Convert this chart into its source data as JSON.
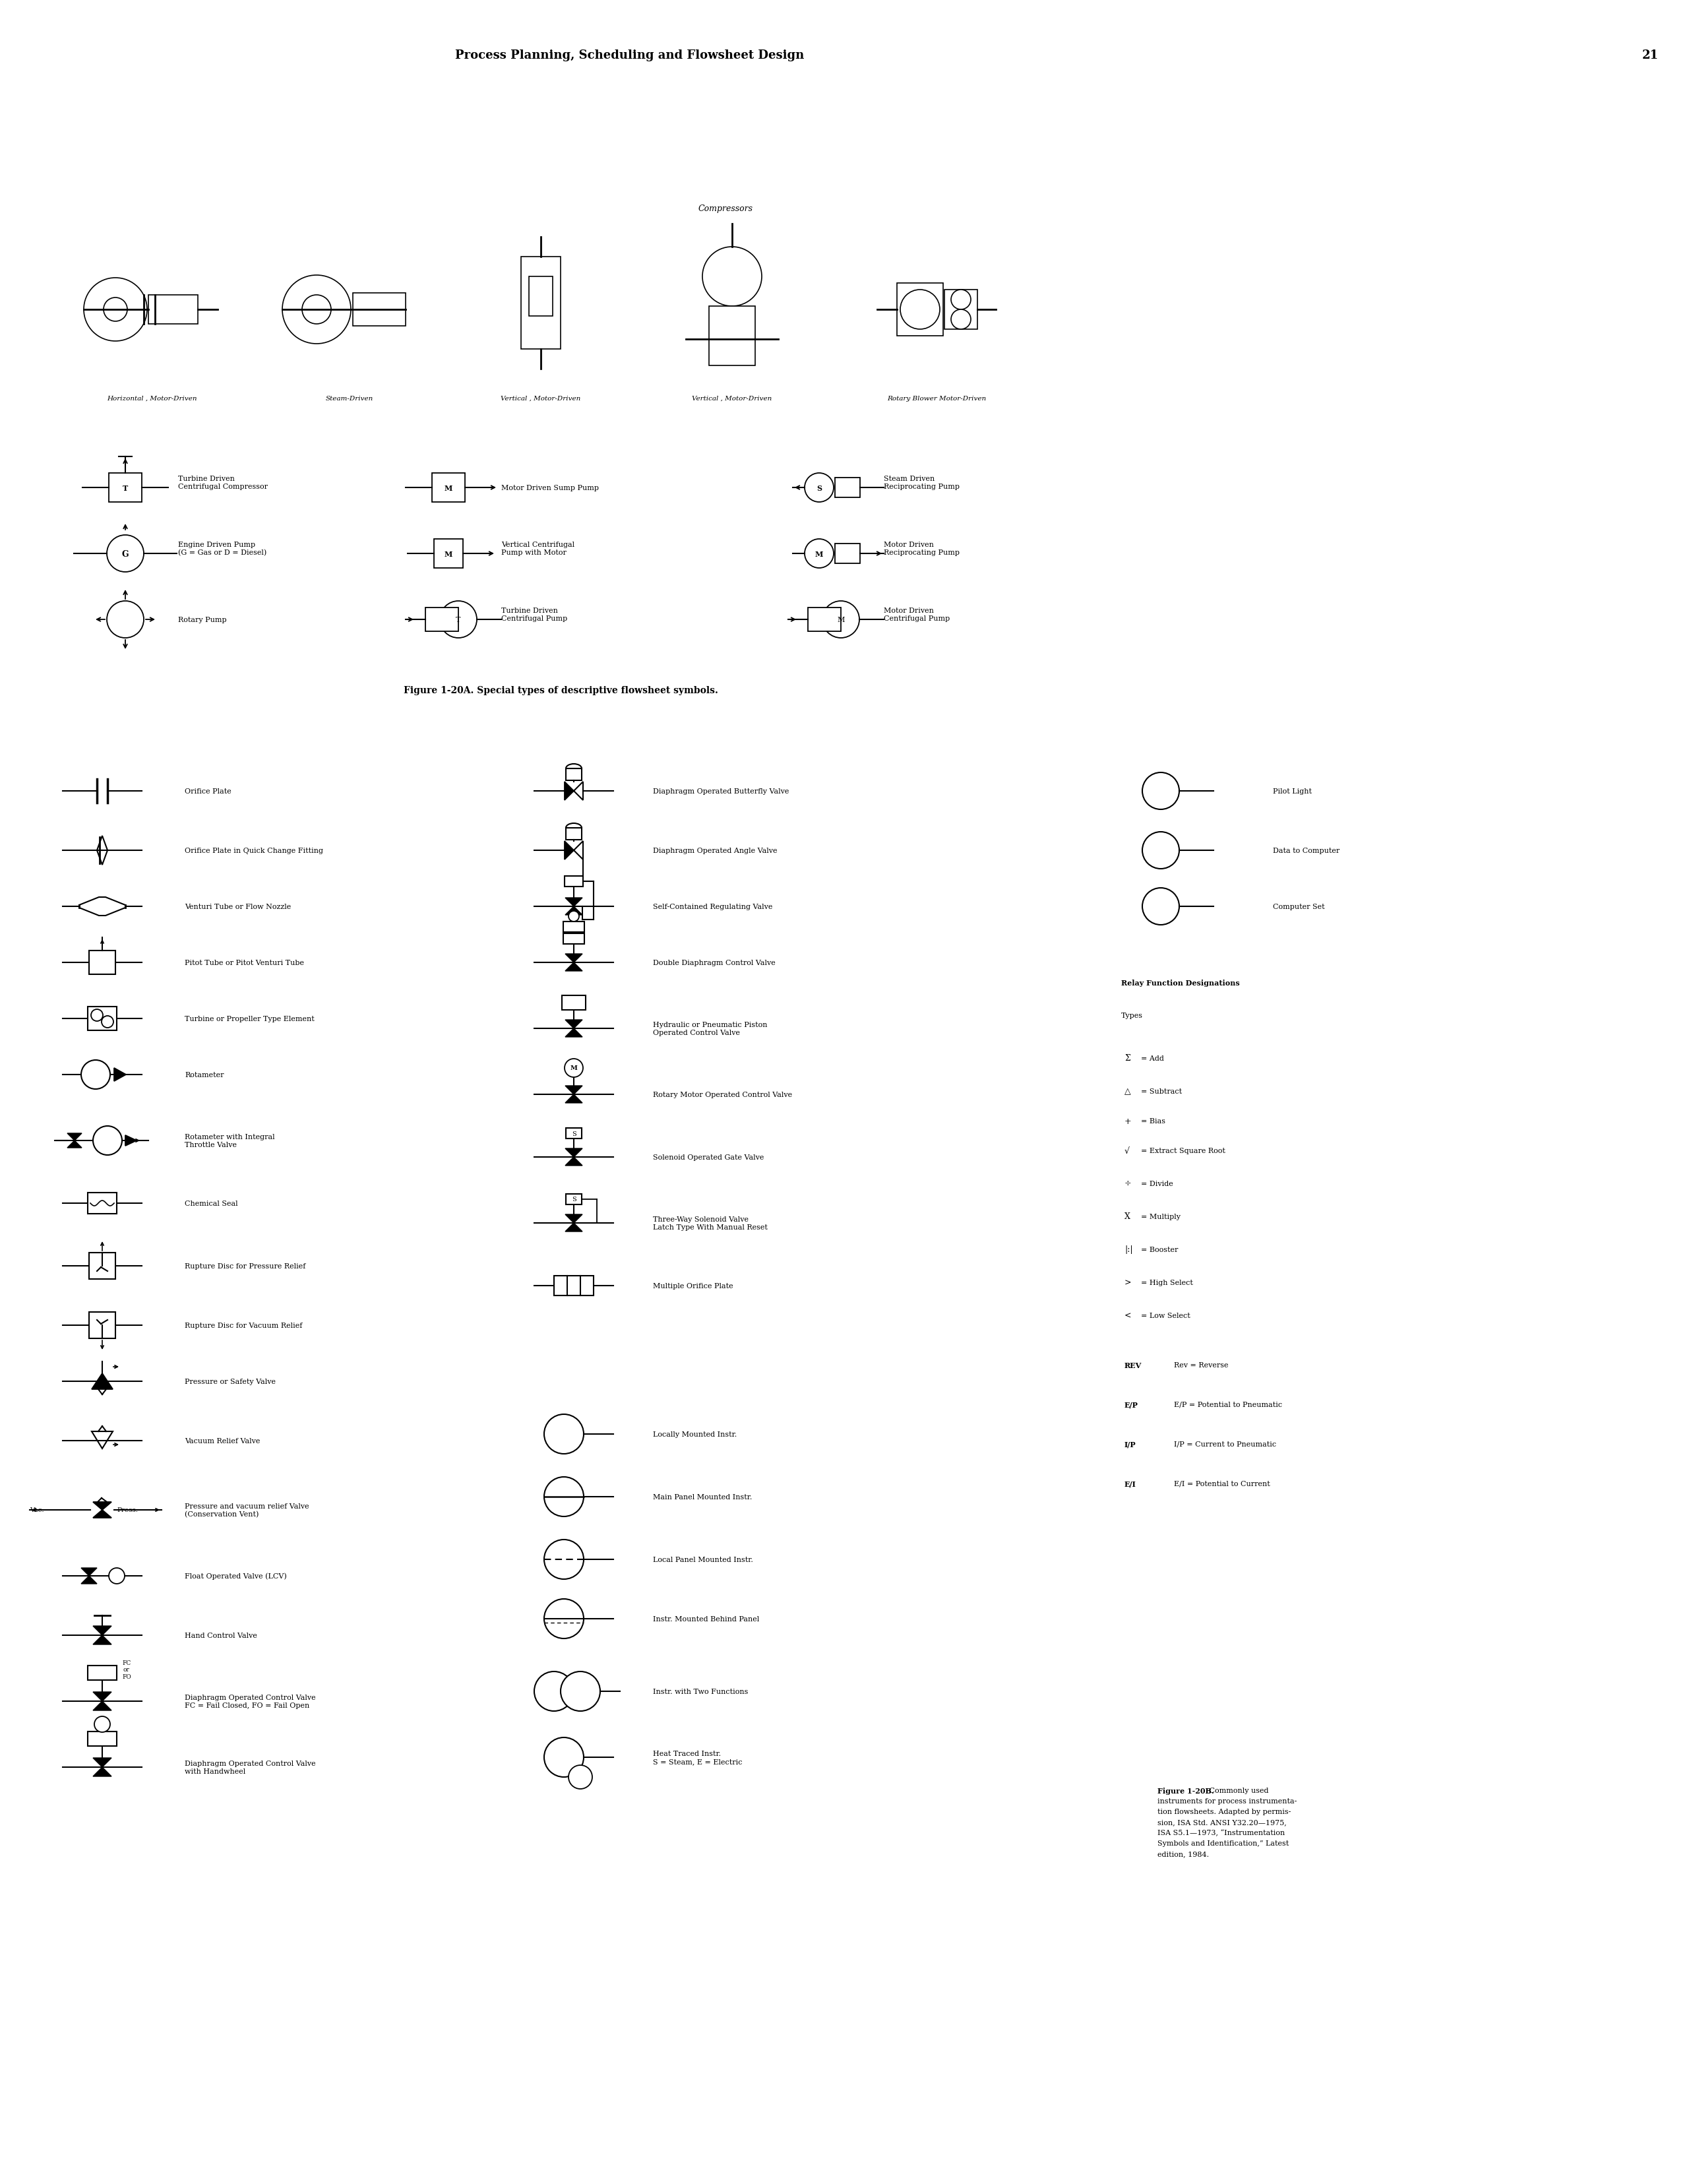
{
  "page_header": "Process Planning, Scheduling and Flowsheet Design",
  "page_number": "21",
  "section1_title": "Compressors",
  "compressor_labels": [
    "Horizontal , Motor-Driven",
    "Steam-Driven",
    "Vertical , Motor-Driven",
    "Vertical , Motor-Driven",
    "Rotary Blower Motor-Driven"
  ],
  "fig20a_title": "Figure 1-20A. Special types of descriptive flowsheet symbols.",
  "fig20b_caption_bold": "Figure 1-20B.",
  "fig20b_caption_rest": " Commonly used\ninstruments for process instrumenta-\ntion flowsheets. Adapted by permis-\nsion, ISA Std. ANSI Y32.20—1975,\nISA S5.1—1973, “Instrumentation\nSymbols and Identification,” Latest\nedition, 1984.",
  "col1_items": [
    "Orifice Plate",
    "Orifice Plate in Quick Change Fitting",
    "Venturi Tube or Flow Nozzle",
    "Pitot Tube or Pitot Venturi Tube",
    "Turbine or Propeller Type Element",
    "Rotameter",
    "Rotameter with Integral\nThrottle Valve",
    "Chemical Seal",
    "Rupture Disc for Pressure Relief",
    "Rupture Disc for Vacuum Relief",
    "Pressure or Safety Valve",
    "Vacuum Relief Valve",
    "Pressure and vacuum relief Valve\n(Conservation Vent)",
    "Float Operated Valve (LCV)",
    "Hand Control Valve",
    "Diaphragm Operated Control Valve\nFC = Fail Closed, FO = Fail Open",
    "Diaphragm Operated Control Valve\nwith Handwheel"
  ],
  "col2_items": [
    "Diaphragm Operated Butterfly Valve",
    "Diaphragm Operated Angle Valve",
    "Self-Contained Regulating Valve",
    "Double Diaphragm Control Valve",
    "Hydraulic or Pneumatic Piston\nOperated Control Valve",
    "Rotary Motor Operated Control Valve",
    "Solenoid Operated Gate Valve",
    "Three-Way Solenoid Valve\nLatch Type With Manual Reset",
    "Multiple Orifice Plate",
    "",
    "Locally Mounted Instr.",
    "Main Panel Mounted Instr.",
    "Local Panel Mounted Instr.",
    "Instr. Mounted Behind Panel",
    "Instr. with Two Functions",
    "Heat Traced Instr.\nS = Steam, E = Electric"
  ],
  "col3_items": [
    "Pilot Light",
    "Data to Computer",
    "Computer Set",
    "Relay Function Designations",
    "Types",
    "Σ = Add",
    "△ = Subtract",
    "+ = Bias",
    "√ = Extract Square Root",
    "÷ = Divide",
    "X = Multiply",
    "|:| = Booster",
    "> = High Select",
    "< = Low Select",
    "REV",
    "E/P",
    "I/P",
    "E/I"
  ],
  "col3_desc": [
    "",
    "",
    "",
    "",
    "",
    "",
    "",
    "",
    "",
    "",
    "",
    "",
    "",
    "",
    "Rev = Reverse",
    "E/P = Potential to Pneumatic",
    "I/P = Current to Pneumatic",
    "E/I = Potential to Current"
  ],
  "pump_row1_labels": [
    "Turbine Driven\nCentrifugal Compressor",
    "Motor Driven Sump Pump",
    "Steam Driven\nReciprocating Pump"
  ],
  "pump_row2_labels": [
    "Engine Driven Pump\n(G = Gas or D = Diesel)",
    "Vertical Centrifugal\nPump with Motor",
    "Motor Driven\nReciprocating Pump"
  ],
  "pump_row3_labels": [
    "Rotary Pump",
    "Turbine Driven\nCentrifugal Pump",
    "Motor Driven\nCentrifugal Pump"
  ],
  "bg_color": "#ffffff",
  "text_color": "#000000"
}
